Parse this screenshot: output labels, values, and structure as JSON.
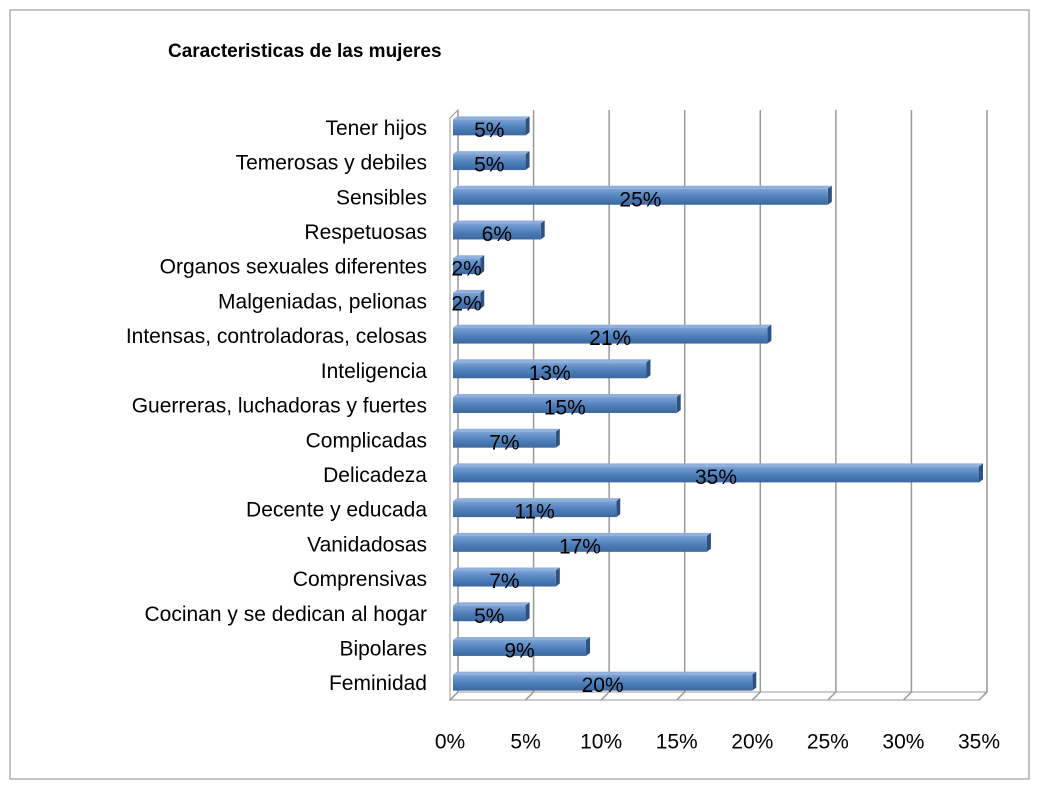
{
  "chart_data": {
    "type": "bar",
    "orientation": "horizontal",
    "title": "Caracteristicas de las mujeres",
    "categories": [
      "Tener hijos",
      "Temerosas y debiles",
      "Sensibles",
      "Respetuosas",
      "Organos sexuales diferentes",
      "Malgeniadas, pelionas",
      "Intensas, controladoras, celosas",
      "Inteligencia",
      "Guerreras, luchadoras  y fuertes",
      "Complicadas",
      "Delicadeza",
      "Decente y educada",
      "Vanidadosas",
      "Comprensivas",
      "Cocinan y se dedican al hogar",
      "Bipolares",
      "Feminidad"
    ],
    "values": [
      5,
      5,
      25,
      6,
      2,
      2,
      21,
      13,
      15,
      7,
      35,
      11,
      17,
      7,
      5,
      9,
      20
    ],
    "value_labels": [
      "5%",
      "5%",
      "25%",
      "6%",
      "2%",
      "2%",
      "21%",
      "13%",
      "15%",
      "7%",
      "35%",
      "11%",
      "17%",
      "7%",
      "5%",
      "9%",
      "20%"
    ],
    "color": "#4f81bd",
    "xlim": [
      0,
      35
    ],
    "xticks": [
      {
        "value": 0,
        "label": "0%"
      },
      {
        "value": 5,
        "label": "5%"
      },
      {
        "value": 10,
        "label": "10%"
      },
      {
        "value": 15,
        "label": "15%"
      },
      {
        "value": 20,
        "label": "20%"
      },
      {
        "value": 25,
        "label": "25%"
      },
      {
        "value": 30,
        "label": "30%"
      },
      {
        "value": 35,
        "label": "35%"
      }
    ],
    "grid": true
  }
}
